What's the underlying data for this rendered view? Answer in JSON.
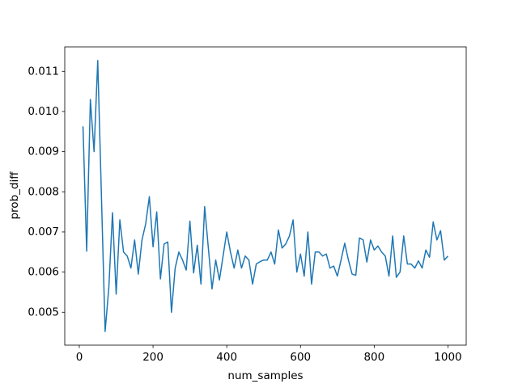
{
  "chart_data": {
    "type": "line",
    "x_label": "num_samples",
    "y_label": "prob_diff",
    "x": [
      10,
      20,
      30,
      40,
      50,
      60,
      70,
      80,
      90,
      100,
      110,
      120,
      130,
      140,
      150,
      160,
      170,
      180,
      190,
      200,
      210,
      220,
      230,
      240,
      250,
      260,
      270,
      280,
      290,
      300,
      310,
      320,
      330,
      340,
      350,
      360,
      370,
      380,
      390,
      400,
      410,
      420,
      430,
      440,
      450,
      460,
      470,
      480,
      490,
      500,
      510,
      520,
      530,
      540,
      550,
      560,
      570,
      580,
      590,
      600,
      610,
      620,
      630,
      640,
      650,
      660,
      670,
      680,
      690,
      700,
      710,
      720,
      730,
      740,
      750,
      760,
      770,
      780,
      790,
      800,
      810,
      820,
      830,
      840,
      850,
      860,
      870,
      880,
      890,
      900,
      910,
      920,
      930,
      940,
      950,
      960,
      970,
      980,
      990,
      1000
    ],
    "series": [
      {
        "color": "#1f77b4",
        "values": [
          0.00963,
          0.00652,
          0.0103,
          0.009,
          0.01127,
          0.0079,
          0.00452,
          0.0056,
          0.00748,
          0.00545,
          0.0073,
          0.0065,
          0.0064,
          0.0061,
          0.0068,
          0.00595,
          0.0068,
          0.0072,
          0.00788,
          0.00663,
          0.0075,
          0.00583,
          0.0067,
          0.00675,
          0.005,
          0.0061,
          0.0065,
          0.0063,
          0.00605,
          0.00727,
          0.00598,
          0.00667,
          0.0057,
          0.00763,
          0.0066,
          0.00558,
          0.0063,
          0.0058,
          0.0064,
          0.007,
          0.0065,
          0.0061,
          0.00655,
          0.0061,
          0.0064,
          0.0063,
          0.0057,
          0.0062,
          0.00626,
          0.0063,
          0.0063,
          0.0065,
          0.0062,
          0.00705,
          0.0066,
          0.0067,
          0.0069,
          0.0073,
          0.006,
          0.00645,
          0.0059,
          0.007,
          0.0057,
          0.0065,
          0.0065,
          0.0064,
          0.00645,
          0.0061,
          0.00615,
          0.0059,
          0.0063,
          0.00672,
          0.0063,
          0.00595,
          0.00592,
          0.00685,
          0.0068,
          0.00625,
          0.0068,
          0.00655,
          0.00665,
          0.0065,
          0.0064,
          0.0059,
          0.0069,
          0.00587,
          0.006,
          0.0069,
          0.0062,
          0.0062,
          0.0061,
          0.00628,
          0.0061,
          0.00655,
          0.00637,
          0.00725,
          0.0068,
          0.00703,
          0.0063,
          0.0064
        ]
      }
    ],
    "xlim": [
      -39.5,
      1049.5
    ],
    "xticks": [
      0,
      200,
      400,
      600,
      800,
      1000
    ],
    "ylim": [
      0.00418,
      0.01161
    ],
    "yticks": [
      0.005,
      0.006,
      0.007,
      0.008,
      0.009,
      {
        "value": 0.01,
        "label": "0.010"
      },
      0.011
    ]
  }
}
